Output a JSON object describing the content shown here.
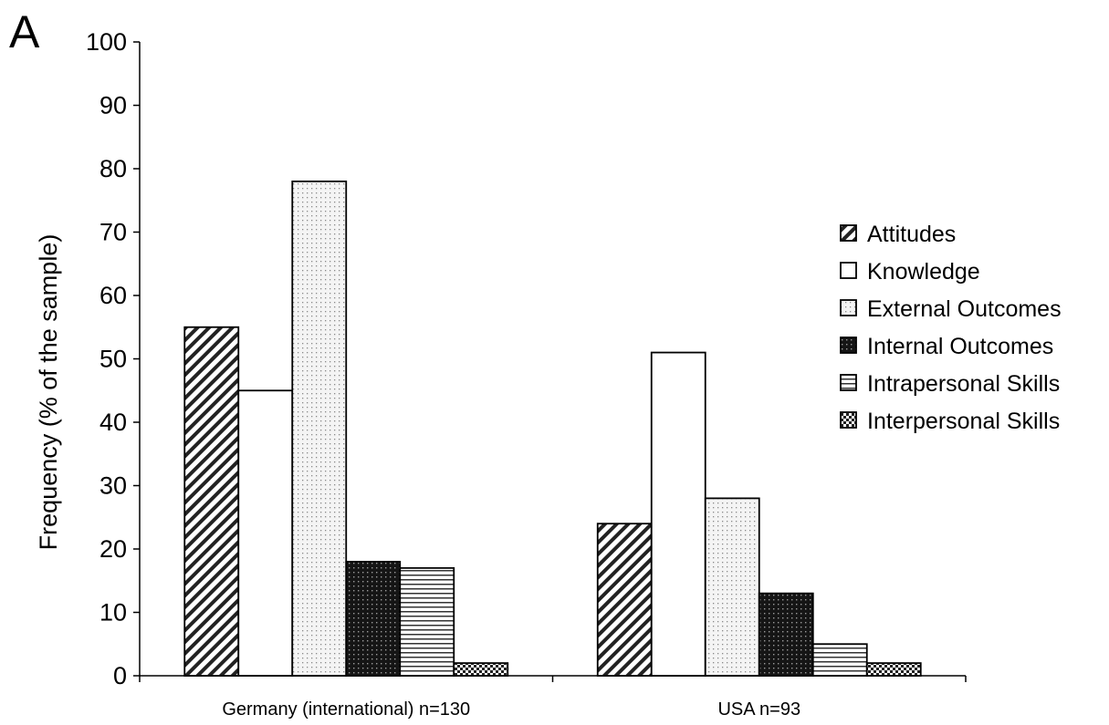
{
  "panel_label": "A",
  "chart_data": {
    "type": "bar",
    "title": "",
    "xlabel": "",
    "ylabel": "Frequency (% of the sample)",
    "ylim": [
      0,
      100
    ],
    "yticks": [
      0,
      10,
      20,
      30,
      40,
      50,
      60,
      70,
      80,
      90,
      100
    ],
    "categories": [
      "Germany (international) n=130",
      "USA n=93"
    ],
    "series": [
      {
        "name": "Attitudes",
        "values": [
          55,
          24
        ],
        "pattern": "diagonal"
      },
      {
        "name": "Knowledge",
        "values": [
          45,
          51
        ],
        "pattern": "none"
      },
      {
        "name": "External Outcomes",
        "values": [
          78,
          28
        ],
        "pattern": "dots-light"
      },
      {
        "name": "Internal Outcomes",
        "values": [
          18,
          13
        ],
        "pattern": "dots-dark"
      },
      {
        "name": "Intrapersonal Skills",
        "values": [
          17,
          5
        ],
        "pattern": "horizontal"
      },
      {
        "name": "Interpersonal Skills",
        "values": [
          2,
          2
        ],
        "pattern": "checker"
      }
    ],
    "legend_position": "right",
    "grid": false
  }
}
